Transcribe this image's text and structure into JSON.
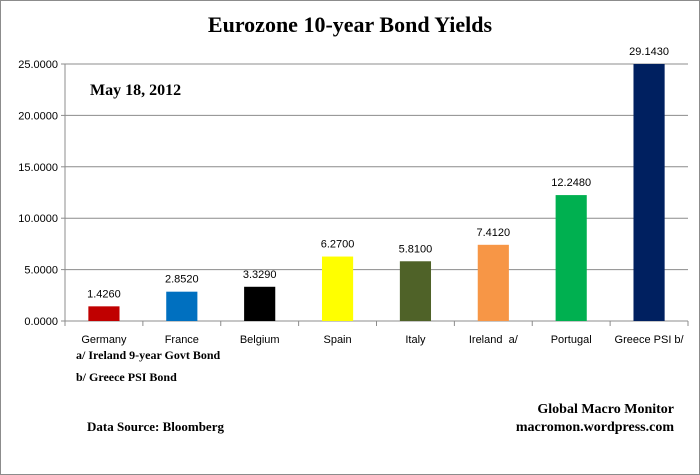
{
  "chart_data": {
    "type": "bar",
    "title": "Eurozone 10-year Bond Yields",
    "subtitle": "May 18, 2012",
    "categories": [
      "Germany",
      "France",
      "Belgium",
      "Spain",
      "Italy",
      "Ireland  a/",
      "Portugal",
      "Greece PSI b/"
    ],
    "values": [
      1.426,
      2.852,
      3.329,
      6.27,
      5.81,
      7.412,
      12.248,
      29.143
    ],
    "value_labels": [
      "1.4260",
      "2.8520",
      "3.3290",
      "6.2700",
      "5.8100",
      "7.4120",
      "12.2480",
      "29.1430"
    ],
    "colors": [
      "#c00000",
      "#0070c0",
      "#000000",
      "#ffff00",
      "#4f6228",
      "#f79646",
      "#00b050",
      "#002060"
    ],
    "ylim": [
      0,
      25
    ],
    "yticks": [
      "0.0000",
      "5.0000",
      "10.0000",
      "15.0000",
      "20.0000",
      "25.0000"
    ],
    "grid": true,
    "xlabel": "",
    "ylabel": "",
    "notes": [
      "a/ Ireland 9-year Govt Bond",
      "b/  Greece PSI Bond"
    ],
    "source": "Data Source:  Bloomberg",
    "credit": [
      "Global Macro Monitor",
      "macromon.wordpress.com"
    ]
  }
}
